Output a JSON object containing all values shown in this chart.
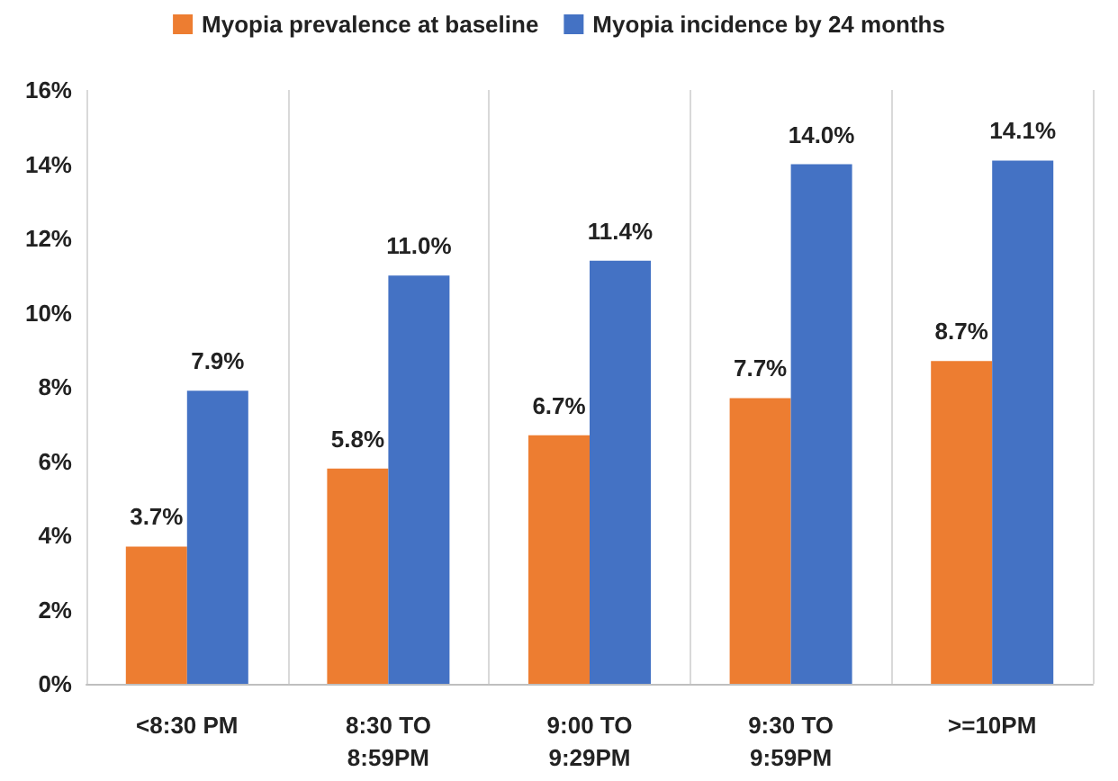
{
  "chart_data": {
    "type": "bar",
    "categories": [
      "<8:30 PM",
      "8:30 TO\n8:59PM",
      "9:00 TO\n9:29PM",
      "9:30 TO\n9:59PM",
      ">=10PM"
    ],
    "series": [
      {
        "name": "Myopia prevalence at baseline",
        "color": "#ed7d31",
        "values": [
          3.7,
          5.8,
          6.7,
          7.7,
          8.7
        ],
        "value_labels": [
          "3.7%",
          "5.8%",
          "6.7%",
          "7.7%",
          "8.7%"
        ]
      },
      {
        "name": "Myopia incidence by 24 months",
        "color": "#4472c4",
        "values": [
          7.9,
          11.0,
          11.4,
          14.0,
          14.1
        ],
        "value_labels": [
          "7.9%",
          "11.0%",
          "11.4%",
          "14.0%",
          "14.1%"
        ]
      }
    ],
    "ylim": [
      0,
      16
    ],
    "yticks": [
      {
        "value": 0,
        "label": "0%"
      },
      {
        "value": 2,
        "label": "2%"
      },
      {
        "value": 4,
        "label": "4%"
      },
      {
        "value": 6,
        "label": "6%"
      },
      {
        "value": 8,
        "label": "8%"
      },
      {
        "value": 10,
        "label": "10%"
      },
      {
        "value": 12,
        "label": "12%"
      },
      {
        "value": 14,
        "label": "14%"
      },
      {
        "value": 16,
        "label": "16%"
      }
    ],
    "grid": "x",
    "legend": "top"
  }
}
